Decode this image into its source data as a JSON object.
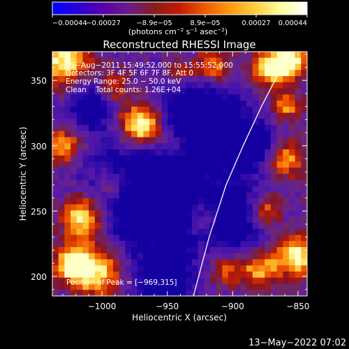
{
  "chart_data": {
    "type": "heatmap",
    "title": "Reconstructed RHESSI Image",
    "xlabel": "Heliocentric X (arcsec)",
    "ylabel": "Heliocentric Y (arcsec)",
    "xlim": [
      -1038,
      -843
    ],
    "ylim": [
      185,
      372
    ],
    "x_ticks": [
      -1000,
      -950,
      -900,
      -850
    ],
    "x_tick_labels": [
      "−1000",
      "−950",
      "−900",
      "−850"
    ],
    "y_ticks": [
      200,
      250,
      300,
      350
    ],
    "y_tick_labels": [
      "200",
      "250",
      "300",
      "350"
    ],
    "colorbar": {
      "range": [
        -0.00044,
        0.00044
      ],
      "tick_labels": [
        "−0.00044",
        "−0.00027",
        "−8.9e−05",
        "8.9e−05",
        "0.00027",
        "0.00044"
      ],
      "unit_line": "(photons cm",
      "unit_exp1": "−2",
      "unit_mid": " s",
      "unit_exp2": "−1",
      "unit_end": " asec",
      "unit_exp3": "−2",
      "unit_close": ")",
      "colormap": [
        "#0000ff",
        "#2a00d4",
        "#5a00a8",
        "#6b1c8a",
        "#8a1c1c",
        "#c21b00",
        "#f05a00",
        "#ff9a10",
        "#ffd040",
        "#ffffa0",
        "#ffffff"
      ]
    },
    "annotations": [
      "15−Aug−2011 15:49:52.000 to 15:55:52.000",
      "Detectors: 3F 4F 5F 6F 7F 8F, Att 0",
      "Energy Range: 25.0 − 50.0 keV",
      "Clean    Total counts: 1.26E+04"
    ],
    "peak_label": "Position of Peak = [−969,315]",
    "peak_position": [
      -969,
      315
    ],
    "limb_curve": [
      [
        -930,
        185
      ],
      [
        -918,
        230
      ],
      [
        -905,
        270
      ],
      [
        -892,
        300
      ],
      [
        -878,
        330
      ],
      [
        -865,
        355
      ],
      [
        -857,
        372
      ]
    ],
    "grid": false,
    "legend": "colorbar top"
  },
  "footer": {
    "timestamp": "13−May−2022 07:02"
  }
}
